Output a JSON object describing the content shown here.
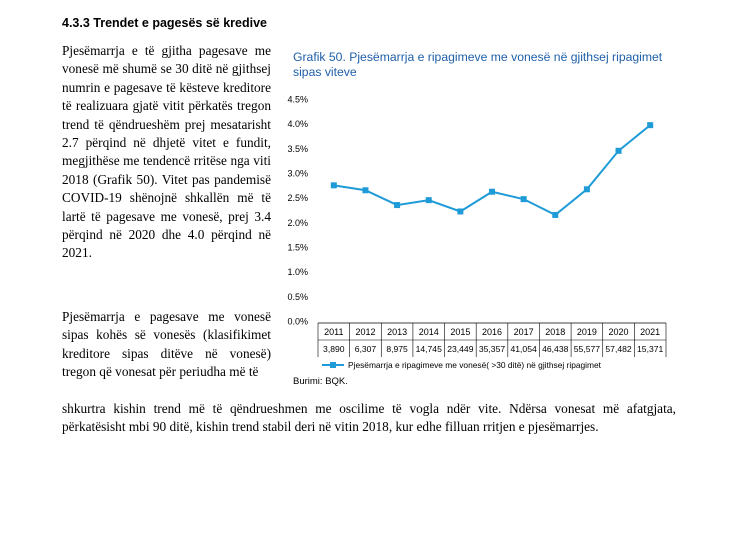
{
  "section": {
    "heading": "4.3.3 Trendet e pagesës së kredive"
  },
  "text": {
    "para1": "Pjesëmarrja e të gjitha pagesave me vonesë më shumë se 30 ditë në gjithsej numrin e pagesave të kësteve kreditore të realizuara gjatë vitit përkatës tregon trend të qëndrueshëm prej mesatarisht 2.7 përqind në dhjetë vitet e fundit, megjithëse me tendencë rritëse nga viti 2018 (Grafik 50). Vitet pas pandemisë COVID-19 shënojnë shkallën më të lartë të pagesave me vonesë, prej 3.4 përqind në 2020 dhe 4.0 përqind në 2021.",
    "para2_start": "Pjesëmarrja e pagesave me vonesë sipas kohës së vonesës (klasifikimet kreditore sipas ditëve në vonesë) tregon që vonesat për periudha më të",
    "para2_end": "shkurtra kishin trend më të qëndrueshmen me oscilime të vogla ndër vite. Ndërsa vonesat më afatgjata, përkatësisht mbi 90 ditë, kishin trend stabil deri në vitin 2018, kur edhe filluan rritjen e pjesëmarrjes."
  },
  "chart": {
    "title": "Grafik 50. Pjesëmarrja e ripagimeve me vonesë në gjithsej ripagimet sipas viteve",
    "source": "Burimi: BQK.",
    "line_color": "#1f9bd7",
    "text_color": "#1f5fa8"
  },
  "chart_data": {
    "type": "line",
    "categories": [
      "2011",
      "2012",
      "2013",
      "2014",
      "2015",
      "2016",
      "2017",
      "2018",
      "2019",
      "2020",
      "2021"
    ],
    "table_row": [
      "3,890",
      "6,307",
      "8,975",
      "14,745",
      "23,449",
      "35,357",
      "41,054",
      "46,438",
      "55,577",
      "57,482",
      "15,371"
    ],
    "series": [
      {
        "name": "Pjesëmarrja e ripagimeve me vonesë( >30 ditë) në gjithsej ripagimet",
        "values": [
          2.75,
          2.65,
          2.35,
          2.45,
          2.22,
          2.62,
          2.47,
          2.15,
          2.67,
          3.45,
          3.97
        ]
      }
    ],
    "y_ticks": [
      "0.0%",
      "0.5%",
      "1.0%",
      "1.5%",
      "2.0%",
      "2.5%",
      "3.0%",
      "3.5%",
      "4.0%",
      "4.5%"
    ],
    "ylim": [
      0,
      4.5
    ],
    "grid": false,
    "legend_position": "bottom"
  }
}
